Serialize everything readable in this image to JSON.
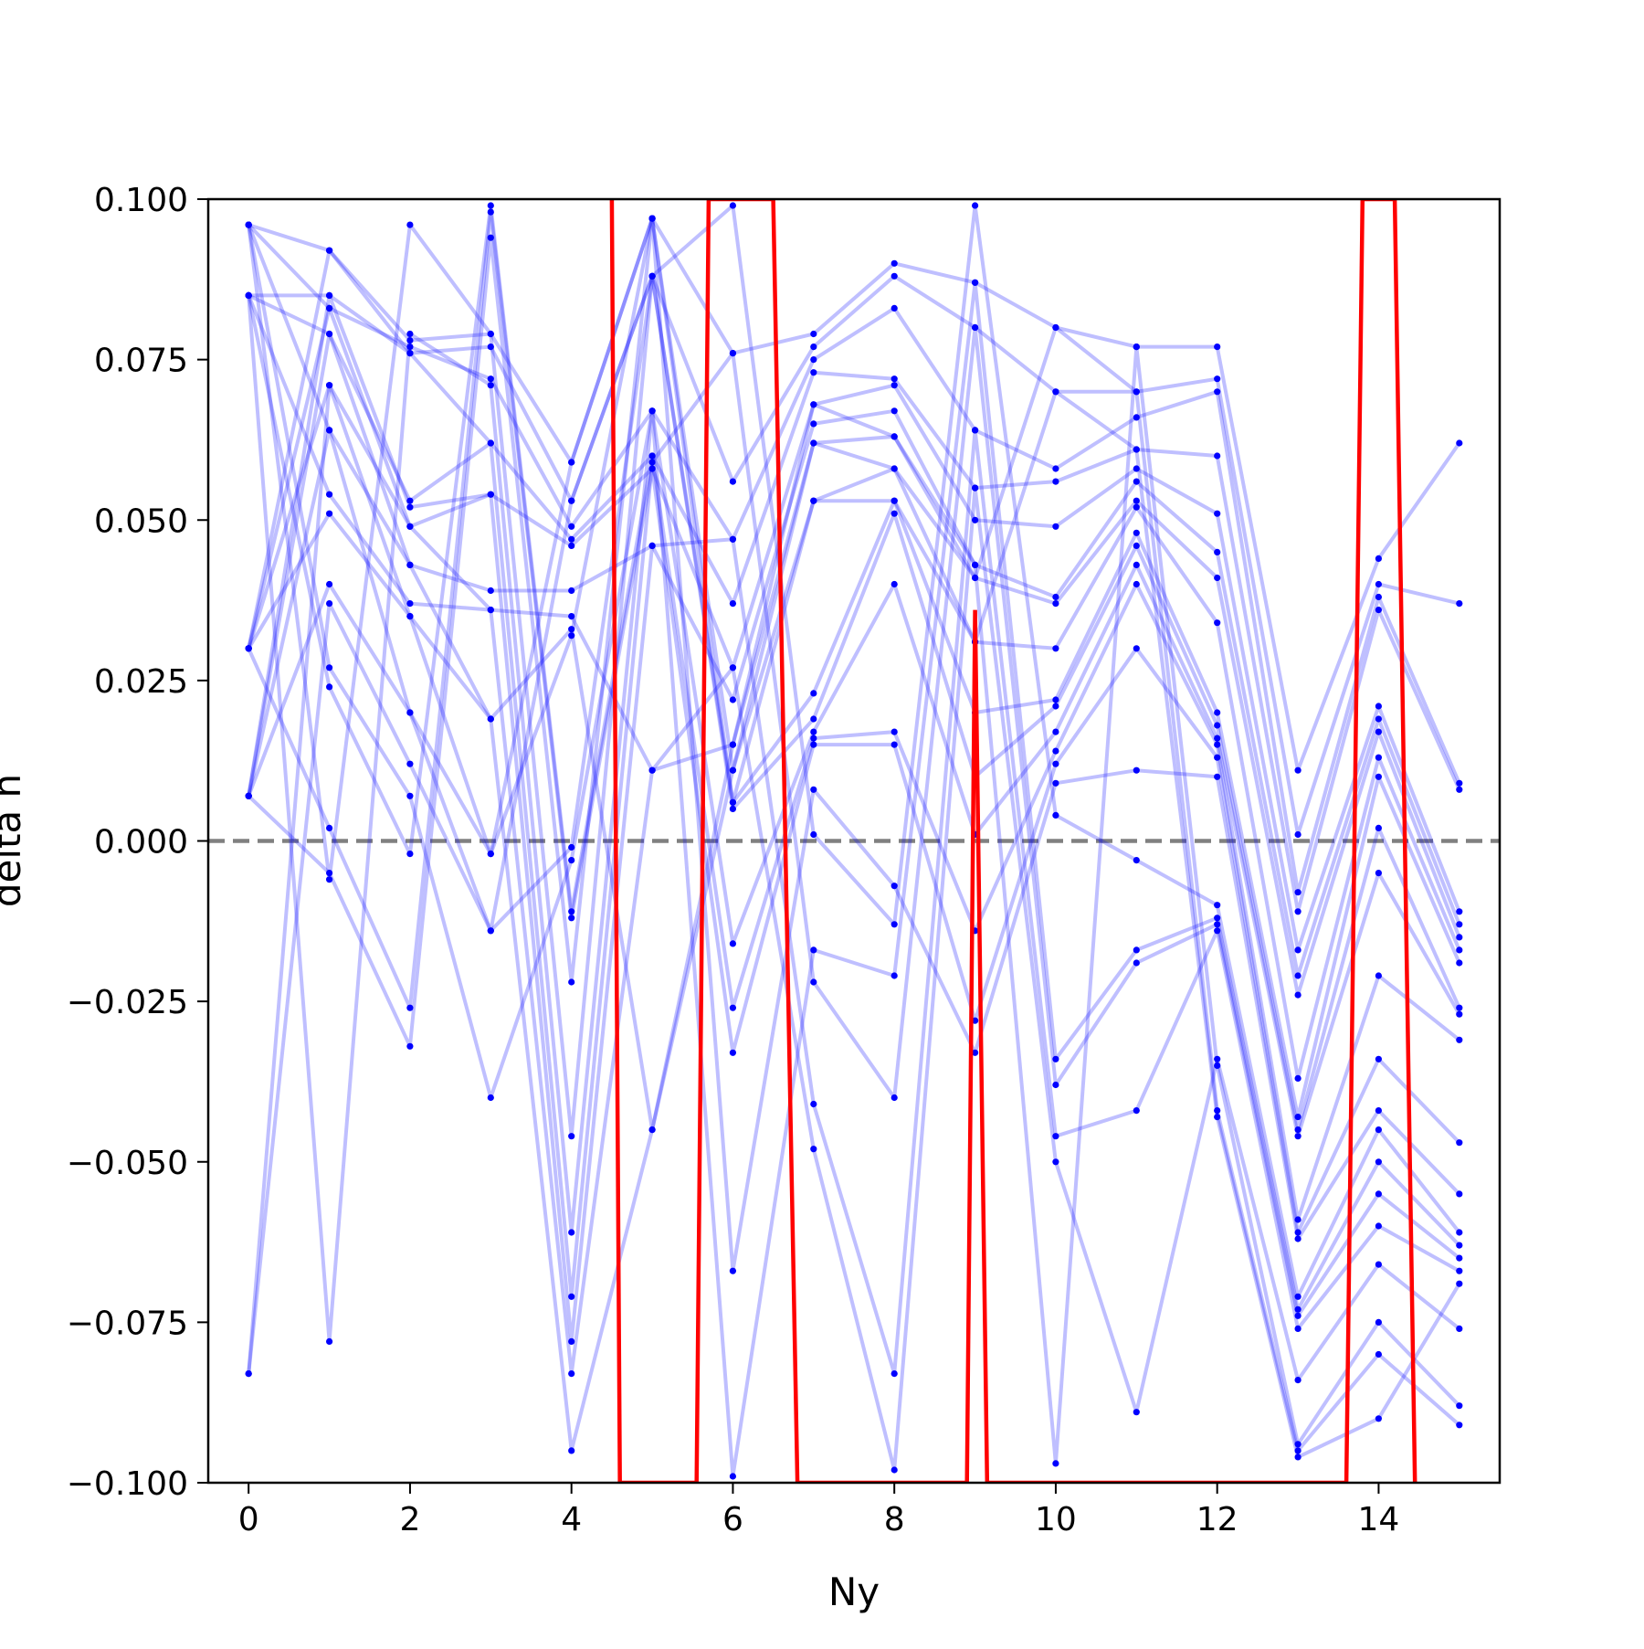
{
  "chart_data": {
    "type": "line",
    "title": "",
    "xlabel": "Ny",
    "ylabel": "delta h",
    "xlim": [
      -0.5,
      15.5
    ],
    "ylim": [
      -0.1,
      0.1
    ],
    "x_ticks": [
      0,
      2,
      4,
      6,
      8,
      10,
      12,
      14
    ],
    "x_tick_labels": [
      "0",
      "2",
      "4",
      "6",
      "8",
      "10",
      "12",
      "14"
    ],
    "y_ticks": [
      -0.1,
      -0.075,
      -0.05,
      -0.025,
      0.0,
      0.025,
      0.05,
      0.075,
      0.1
    ],
    "y_tick_labels": [
      "−0.100",
      "−0.075",
      "−0.050",
      "−0.025",
      "0.000",
      "0.025",
      "0.050",
      "0.075",
      "0.100"
    ],
    "reference_line": {
      "y": 0.0,
      "style": "dashed",
      "color": "#808080"
    },
    "grid": false,
    "legend": null,
    "colors": {
      "series": "#0000ff",
      "highlight": "#ff0000",
      "reference": "#808080"
    },
    "series": [
      {
        "x": [
          0,
          1,
          2,
          3,
          4,
          5,
          6,
          7,
          8,
          9,
          10,
          11,
          12,
          13,
          14,
          15
        ],
        "values": [
          0.096,
          0.092,
          0.078,
          0.079,
          0.059,
          0.097,
          0.076,
          0.079,
          0.09,
          0.087,
          0.08,
          0.077,
          0.077,
          0.011,
          0.044,
          0.062
        ]
      },
      {
        "x": [
          0,
          1,
          2,
          3,
          4,
          5,
          6,
          7,
          8,
          9,
          10,
          11,
          12,
          13,
          14,
          15
        ],
        "values": [
          0.085,
          0.085,
          0.076,
          0.077,
          0.053,
          0.088,
          0.056,
          0.077,
          0.088,
          0.08,
          0.07,
          0.07,
          0.072,
          0.001,
          0.04,
          0.037
        ]
      },
      {
        "x": [
          0,
          1,
          2,
          3,
          4,
          5,
          6,
          7,
          8,
          9,
          10,
          11,
          12,
          13,
          14,
          15
        ],
        "values": [
          0.03,
          0.083,
          0.077,
          0.072,
          0.049,
          0.067,
          0.047,
          0.075,
          0.083,
          0.064,
          0.058,
          0.066,
          0.07,
          -0.008,
          0.038,
          0.009
        ]
      },
      {
        "x": [
          0,
          1,
          2,
          3,
          4,
          5,
          6,
          7,
          8,
          9,
          10,
          11,
          12,
          13,
          14,
          15
        ],
        "values": [
          0.007,
          0.079,
          0.053,
          0.062,
          0.047,
          0.06,
          0.037,
          0.073,
          0.072,
          0.055,
          0.056,
          0.061,
          0.06,
          -0.011,
          0.036,
          0.008
        ]
      },
      {
        "x": [
          0,
          1,
          2,
          3,
          4,
          5,
          6,
          7,
          8,
          9,
          10,
          11,
          12,
          13,
          14,
          15
        ],
        "values": [
          -0.083,
          0.071,
          0.049,
          0.054,
          0.046,
          0.058,
          0.027,
          0.068,
          0.071,
          0.05,
          0.049,
          0.058,
          0.051,
          -0.017,
          0.021,
          -0.011
        ]
      },
      {
        "x": [
          0,
          1,
          2,
          3,
          4,
          5,
          6,
          7,
          8,
          9,
          10,
          11,
          12,
          13,
          14,
          15
        ],
        "values": [
          0.096,
          0.064,
          0.043,
          0.039,
          0.039,
          0.046,
          0.022,
          0.065,
          0.067,
          0.043,
          0.038,
          0.056,
          0.045,
          -0.021,
          0.019,
          -0.013
        ]
      },
      {
        "x": [
          0,
          1,
          2,
          3,
          4,
          5,
          6,
          7,
          8,
          9,
          10,
          11,
          12,
          13,
          14,
          15
        ],
        "values": [
          0.085,
          0.054,
          0.037,
          0.036,
          0.035,
          0.011,
          0.015,
          0.062,
          0.063,
          0.041,
          0.037,
          0.053,
          0.041,
          -0.024,
          0.017,
          -0.015
        ]
      },
      {
        "x": [
          0,
          1,
          2,
          3,
          4,
          5,
          6,
          7,
          8,
          9,
          10,
          11,
          12,
          13,
          14,
          15
        ],
        "values": [
          0.03,
          0.051,
          0.035,
          0.019,
          0.033,
          -0.045,
          0.011,
          0.053,
          0.058,
          0.031,
          0.03,
          0.052,
          0.034,
          -0.037,
          0.013,
          -0.017
        ]
      },
      {
        "x": [
          0,
          1,
          2,
          3,
          4,
          5,
          6,
          7,
          8,
          9,
          10,
          11,
          12,
          13,
          14,
          15
        ],
        "values": [
          0.007,
          0.04,
          0.02,
          -0.002,
          0.032,
          0.097,
          0.006,
          0.023,
          0.053,
          0.02,
          0.022,
          0.048,
          0.02,
          -0.043,
          0.01,
          -0.019
        ]
      },
      {
        "x": [
          0,
          1,
          2,
          3,
          4,
          5,
          6,
          7,
          8,
          9,
          10,
          11,
          12,
          13,
          14,
          15
        ],
        "values": [
          -0.083,
          0.037,
          0.012,
          -0.014,
          -0.001,
          0.088,
          0.005,
          0.019,
          0.051,
          0.01,
          0.021,
          0.046,
          0.018,
          -0.045,
          0.002,
          -0.026
        ]
      },
      {
        "x": [
          0,
          1,
          2,
          3,
          4,
          5,
          6,
          7,
          8,
          9,
          10,
          11,
          12,
          13,
          14,
          15
        ],
        "values": [
          0.096,
          0.027,
          0.007,
          -0.04,
          -0.003,
          0.067,
          -0.016,
          0.017,
          0.04,
          0.001,
          0.017,
          0.043,
          0.016,
          -0.046,
          -0.005,
          -0.027
        ]
      },
      {
        "x": [
          0,
          1,
          2,
          3,
          4,
          5,
          6,
          7,
          8,
          9,
          10,
          11,
          12,
          13,
          14,
          15
        ],
        "values": [
          0.085,
          0.024,
          -0.002,
          0.099,
          -0.011,
          0.06,
          -0.026,
          0.016,
          0.017,
          -0.014,
          0.014,
          0.04,
          0.015,
          -0.059,
          -0.021,
          -0.031
        ]
      },
      {
        "x": [
          0,
          1,
          2,
          3,
          4,
          5,
          6,
          7,
          8,
          9,
          10,
          11,
          12,
          13,
          14,
          15
        ],
        "values": [
          0.03,
          0.002,
          -0.026,
          0.098,
          -0.012,
          0.058,
          -0.033,
          0.015,
          0.015,
          -0.028,
          0.012,
          0.03,
          0.013,
          -0.061,
          -0.034,
          -0.047
        ]
      },
      {
        "x": [
          0,
          1,
          2,
          3,
          4,
          5,
          6,
          7,
          8,
          9,
          10,
          11,
          12,
          13,
          14,
          15
        ],
        "values": [
          0.007,
          -0.005,
          -0.032,
          0.094,
          -0.022,
          0.097,
          -0.067,
          0.008,
          -0.007,
          -0.033,
          0.009,
          0.011,
          0.01,
          -0.062,
          -0.042,
          -0.055
        ]
      },
      {
        "x": [
          0,
          1,
          2,
          3,
          4,
          5,
          6,
          7,
          8,
          9,
          10,
          11,
          12,
          13,
          14,
          15
        ],
        "values": [
          0.096,
          -0.006,
          0.096,
          0.079,
          -0.046,
          0.088,
          0.099,
          0.001,
          -0.013,
          0.099,
          0.004,
          -0.003,
          -0.01,
          -0.071,
          -0.045,
          -0.061
        ]
      },
      {
        "x": [
          0,
          1,
          2,
          3,
          4,
          5,
          6,
          7,
          8,
          9,
          10,
          11,
          12,
          13,
          14,
          15
        ],
        "values": [
          0.085,
          -0.078,
          0.079,
          0.071,
          -0.061,
          0.067,
          -0.099,
          -0.017,
          -0.021,
          0.087,
          -0.034,
          -0.017,
          -0.012,
          -0.073,
          -0.05,
          -0.063
        ]
      },
      {
        "x": [
          0,
          1,
          2,
          3,
          4,
          5,
          6,
          7,
          8,
          9,
          10,
          11,
          12,
          13,
          14,
          15
        ],
        "values": [
          0.03,
          0.092,
          0.076,
          0.062,
          -0.071,
          0.059,
          0.076,
          -0.022,
          -0.04,
          0.08,
          -0.038,
          -0.019,
          -0.013,
          -0.074,
          -0.055,
          -0.065
        ]
      },
      {
        "x": [
          0,
          1,
          2,
          3,
          4,
          5,
          6,
          7,
          8,
          9,
          10,
          11,
          12,
          13,
          14,
          15
        ],
        "values": [
          0.007,
          0.085,
          0.052,
          0.054,
          -0.078,
          0.046,
          0.047,
          -0.041,
          -0.083,
          0.064,
          -0.046,
          -0.042,
          -0.014,
          -0.076,
          -0.06,
          -0.067
        ]
      },
      {
        "x": [
          0,
          1,
          2,
          3,
          4,
          5,
          6,
          7,
          8,
          9,
          10,
          11,
          12,
          13,
          14,
          15
        ],
        "values": [
          0.096,
          0.083,
          0.049,
          0.036,
          -0.083,
          0.011,
          0.027,
          -0.048,
          -0.098,
          0.055,
          -0.05,
          -0.089,
          -0.034,
          -0.084,
          -0.066,
          -0.076
        ]
      },
      {
        "x": [
          0,
          1,
          2,
          3,
          4,
          5,
          6,
          7,
          8,
          9,
          10,
          11,
          12,
          13,
          14,
          15
        ],
        "values": [
          0.085,
          0.079,
          0.043,
          0.019,
          -0.095,
          -0.045,
          0.015,
          0.068,
          0.063,
          0.043,
          -0.097,
          0.077,
          -0.035,
          -0.094,
          -0.075,
          -0.088
        ]
      },
      {
        "x": [
          0,
          1,
          2,
          3,
          4,
          5,
          6,
          7,
          8,
          9,
          10,
          11,
          12,
          13,
          14,
          15
        ],
        "values": [
          0.03,
          0.071,
          0.035,
          -0.002,
          0.059,
          0.097,
          0.011,
          0.062,
          0.058,
          0.041,
          0.08,
          0.07,
          -0.042,
          -0.095,
          -0.08,
          -0.091
        ]
      },
      {
        "x": [
          0,
          1,
          2,
          3,
          4,
          5,
          6,
          7,
          8,
          9,
          10,
          11,
          12,
          13,
          14,
          15
        ],
        "values": [
          0.007,
          0.064,
          0.02,
          -0.014,
          0.053,
          0.088,
          0.006,
          0.053,
          0.053,
          0.031,
          0.07,
          0.061,
          -0.043,
          -0.096,
          -0.09,
          -0.069
        ]
      }
    ],
    "highlight_series": {
      "x": [
        4.5,
        4.6,
        5.55,
        5.7,
        6.5,
        6.8,
        8.9,
        9.0,
        9.15,
        13.6,
        13.8,
        14.2,
        14.45
      ],
      "values": [
        0.1,
        -0.1,
        -0.1,
        0.1,
        0.1,
        -0.1,
        -0.1,
        0.036,
        -0.1,
        -0.1,
        0.1,
        0.1,
        -0.1
      ]
    }
  }
}
